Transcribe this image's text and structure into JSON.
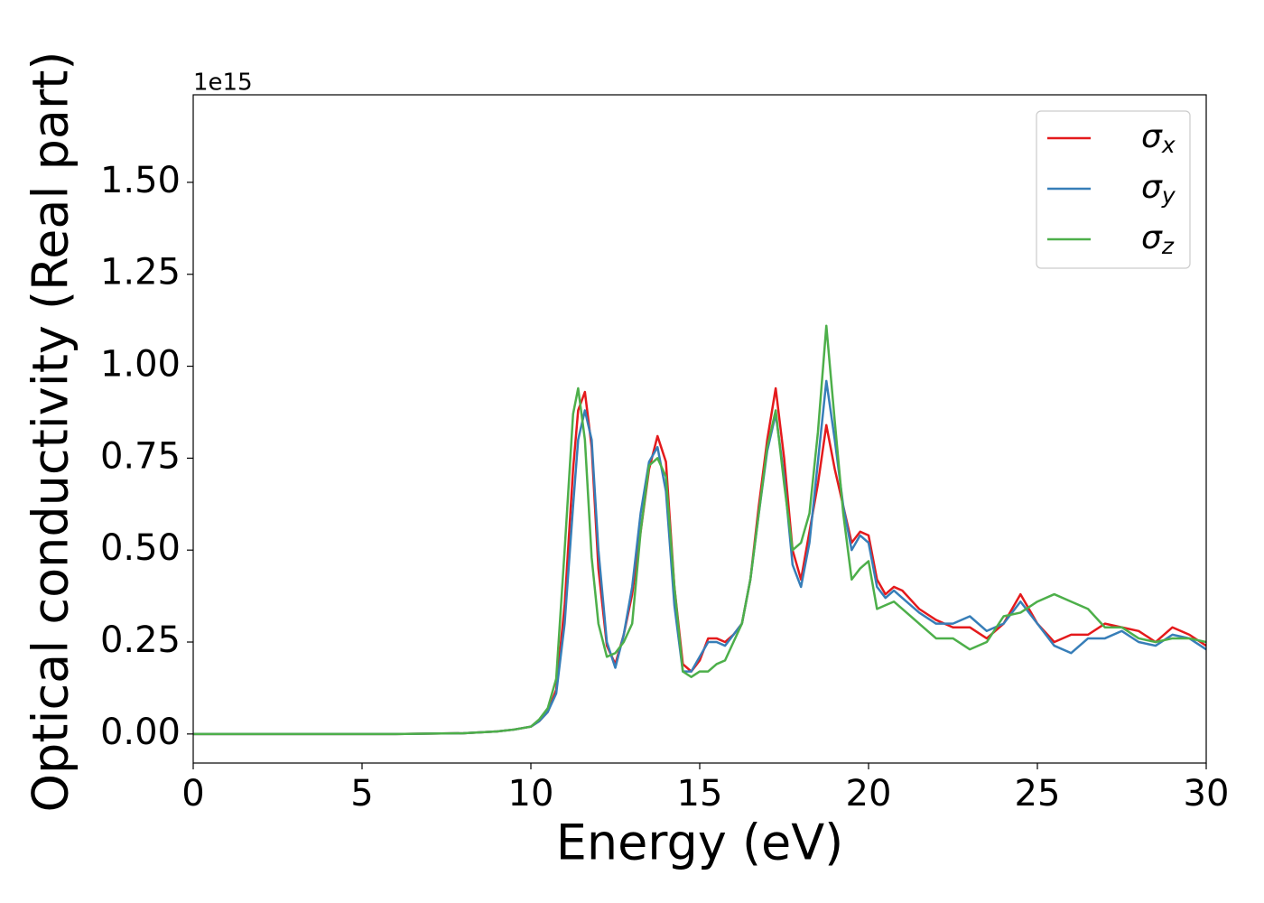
{
  "chart_data": {
    "type": "line",
    "xlabel": "Energy (eV)",
    "ylabel": "Optical conductivity (Real part)",
    "y_offset_label": "1e15",
    "xlim": [
      0,
      30
    ],
    "ylim": [
      -0.079,
      1.738
    ],
    "xticks": [
      0,
      5,
      10,
      15,
      20,
      25,
      30
    ],
    "yticks": [
      {
        "value": 0,
        "label": "0.00"
      },
      {
        "value": 0.25,
        "label": "0.25"
      },
      {
        "value": 0.5,
        "label": "0.50"
      },
      {
        "value": 0.75,
        "label": "0.75"
      },
      {
        "value": 1.0,
        "label": "1.00"
      },
      {
        "value": 1.25,
        "label": "1.25"
      },
      {
        "value": 1.5,
        "label": "1.50"
      }
    ],
    "legend": "upper right",
    "x": [
      0,
      2,
      4,
      6,
      8,
      9,
      9.5,
      10,
      10.25,
      10.5,
      10.75,
      11,
      11.25,
      11.4,
      11.6,
      11.8,
      12,
      12.25,
      12.5,
      12.75,
      13,
      13.25,
      13.5,
      13.75,
      14,
      14.25,
      14.5,
      14.75,
      15,
      15.25,
      15.5,
      15.75,
      16,
      16.25,
      16.5,
      16.75,
      17,
      17.25,
      17.5,
      17.75,
      18,
      18.25,
      18.5,
      18.75,
      19,
      19.25,
      19.5,
      19.75,
      20,
      20.25,
      20.5,
      20.75,
      21,
      21.5,
      22,
      22.5,
      23,
      23.5,
      24,
      24.5,
      25,
      25.5,
      26,
      26.5,
      27,
      27.5,
      28,
      28.5,
      29,
      29.5,
      30
    ],
    "series": [
      {
        "name": "σx",
        "color": "#e41a1c",
        "values": [
          0,
          0,
          0,
          0,
          0.002,
          0.007,
          0.012,
          0.02,
          0.035,
          0.06,
          0.12,
          0.35,
          0.72,
          0.88,
          0.93,
          0.78,
          0.45,
          0.24,
          0.19,
          0.27,
          0.38,
          0.55,
          0.72,
          0.81,
          0.74,
          0.4,
          0.19,
          0.17,
          0.2,
          0.26,
          0.26,
          0.25,
          0.27,
          0.3,
          0.42,
          0.62,
          0.8,
          0.94,
          0.75,
          0.5,
          0.42,
          0.55,
          0.68,
          0.84,
          0.72,
          0.62,
          0.52,
          0.55,
          0.54,
          0.42,
          0.38,
          0.4,
          0.39,
          0.34,
          0.31,
          0.29,
          0.29,
          0.26,
          0.3,
          0.38,
          0.3,
          0.25,
          0.27,
          0.27,
          0.3,
          0.29,
          0.28,
          0.25,
          0.29,
          0.27,
          0.24
        ]
      },
      {
        "name": "σy",
        "color": "#377eb8",
        "values": [
          0,
          0,
          0,
          0,
          0.002,
          0.007,
          0.012,
          0.02,
          0.035,
          0.06,
          0.11,
          0.3,
          0.62,
          0.8,
          0.88,
          0.8,
          0.5,
          0.25,
          0.18,
          0.27,
          0.4,
          0.6,
          0.74,
          0.78,
          0.66,
          0.35,
          0.17,
          0.17,
          0.21,
          0.25,
          0.25,
          0.24,
          0.27,
          0.3,
          0.42,
          0.6,
          0.77,
          0.87,
          0.7,
          0.46,
          0.4,
          0.52,
          0.74,
          0.96,
          0.8,
          0.62,
          0.5,
          0.54,
          0.52,
          0.4,
          0.37,
          0.39,
          0.37,
          0.33,
          0.3,
          0.3,
          0.32,
          0.28,
          0.3,
          0.36,
          0.3,
          0.24,
          0.22,
          0.26,
          0.26,
          0.28,
          0.25,
          0.24,
          0.27,
          0.26,
          0.23
        ]
      },
      {
        "name": "σz",
        "color": "#4daf4a",
        "values": [
          0,
          0,
          0,
          0,
          0.002,
          0.007,
          0.012,
          0.02,
          0.04,
          0.07,
          0.15,
          0.5,
          0.87,
          0.94,
          0.8,
          0.48,
          0.3,
          0.21,
          0.22,
          0.25,
          0.3,
          0.55,
          0.73,
          0.75,
          0.7,
          0.4,
          0.17,
          0.155,
          0.17,
          0.17,
          0.19,
          0.2,
          0.25,
          0.3,
          0.42,
          0.6,
          0.78,
          0.88,
          0.68,
          0.5,
          0.52,
          0.6,
          0.82,
          1.11,
          0.85,
          0.6,
          0.42,
          0.45,
          0.47,
          0.34,
          0.35,
          0.36,
          0.34,
          0.3,
          0.26,
          0.26,
          0.23,
          0.25,
          0.32,
          0.33,
          0.36,
          0.38,
          0.36,
          0.34,
          0.29,
          0.29,
          0.26,
          0.25,
          0.26,
          0.26,
          0.25
        ]
      }
    ]
  }
}
